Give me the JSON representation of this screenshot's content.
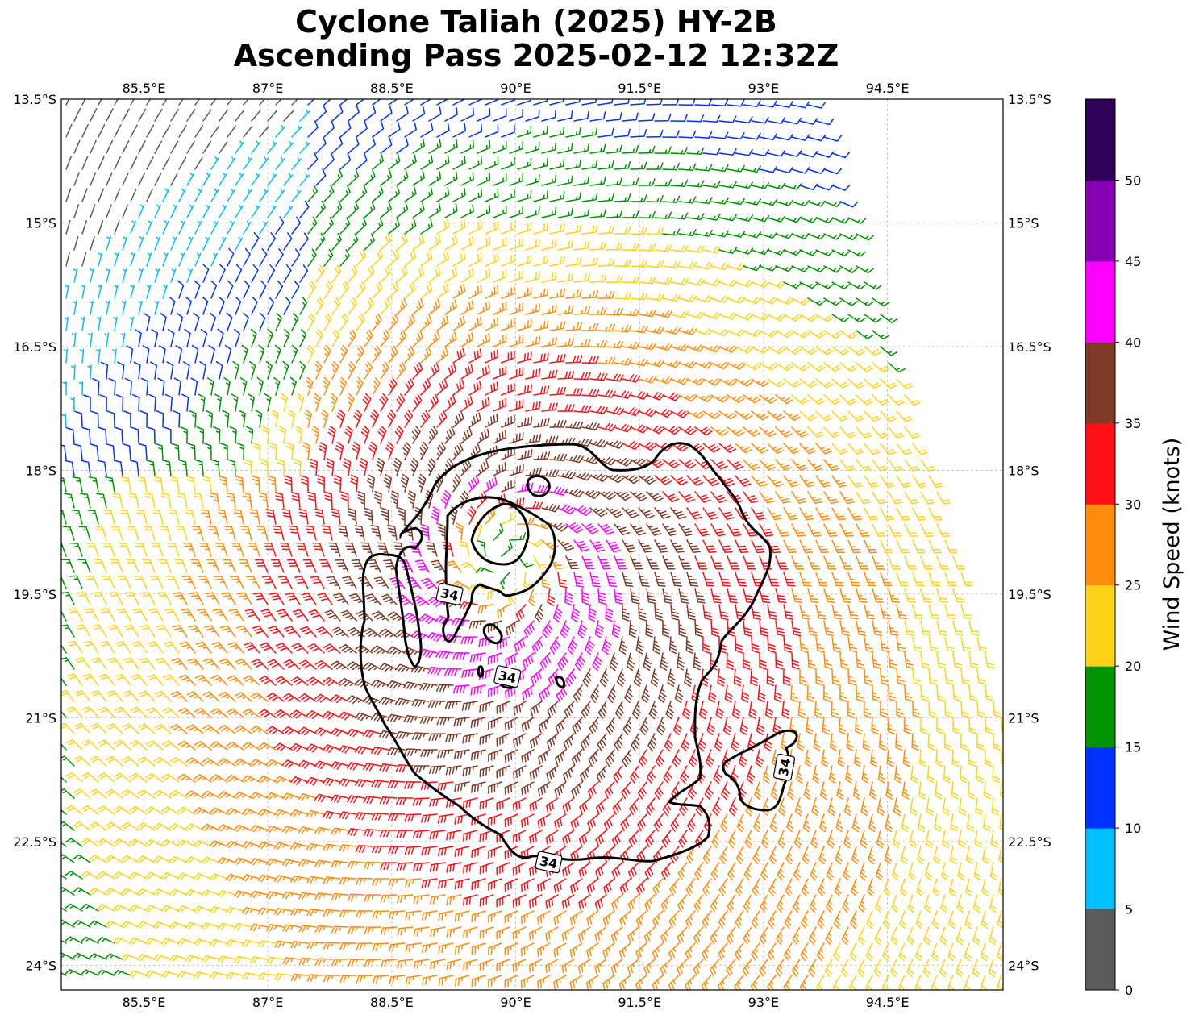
{
  "title_lines": [
    "Cyclone Taliah (2025) HY-2B",
    "Ascending Pass 2025-02-12 12:32Z"
  ],
  "chart_data": {
    "type": "wind-barb-map",
    "x_axis": {
      "ticks": [
        85.5,
        87,
        88.5,
        90,
        91.5,
        93,
        94.5
      ],
      "tick_labels": [
        "85.5°E",
        "87°E",
        "88.5°E",
        "90°E",
        "91.5°E",
        "93°E",
        "94.5°E"
      ],
      "range": [
        84.5,
        95.9
      ]
    },
    "y_axis": {
      "ticks": [
        -13.5,
        -15,
        -16.5,
        -18,
        -19.5,
        -21,
        -22.5,
        -24
      ],
      "tick_labels": [
        "13.5°S",
        "15°S",
        "16.5°S",
        "18°S",
        "19.5°S",
        "21°S",
        "22.5°S",
        "24°S"
      ],
      "range": [
        -24.3,
        -13.5
      ]
    },
    "grid": true,
    "storm_center": {
      "lon": 89.85,
      "lat": -19.1
    },
    "contour_level_label": "34",
    "contour_labels": [
      {
        "text": "34",
        "lon": 89.2,
        "lat": -19.5
      },
      {
        "text": "34",
        "lon": 89.9,
        "lat": -20.5
      },
      {
        "text": "34",
        "lon": 93.25,
        "lat": -21.6
      },
      {
        "text": "34",
        "lon": 90.4,
        "lat": -22.75
      }
    ],
    "colorbar": {
      "label": "Wind Speed (knots)",
      "boundaries": [
        0,
        5,
        10,
        15,
        20,
        25,
        30,
        35,
        40,
        45,
        50,
        55
      ],
      "tick_labels": [
        "0",
        "5",
        "10",
        "15",
        "20",
        "25",
        "30",
        "35",
        "40",
        "45",
        "50"
      ],
      "colors": [
        "#5a5a5a",
        "#00bfff",
        "#0033ff",
        "#009400",
        "#ffd21a",
        "#ff8c0a",
        "#ff0f14",
        "#7f3b26",
        "#ff00ff",
        "#8400b0",
        "#2e0058"
      ]
    }
  }
}
